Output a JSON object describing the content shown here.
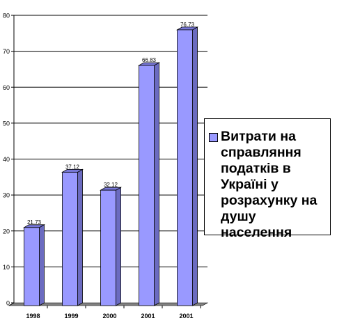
{
  "chart_data": {
    "type": "bar",
    "categories": [
      "1998",
      "1999",
      "2000",
      "2001",
      "2001"
    ],
    "series": [
      {
        "name": "Витрати на справляння податків в Україні у розрахунку на душу населення",
        "values": [
          21.73,
          37.12,
          32.12,
          66.83,
          76.73
        ],
        "value_labels": [
          "21.73",
          "37.12",
          "32.12",
          "66.83",
          "76.73"
        ]
      }
    ],
    "ylim": [
      0,
      80
    ],
    "yticks": [
      0,
      10,
      20,
      30,
      40,
      50,
      60,
      70,
      80
    ],
    "grid": true,
    "legend_position": "right",
    "colors": {
      "bar_front": "#9999ff",
      "bar_side": "#6b6bc0",
      "bar_top": "#7878d8",
      "floor": "#808080",
      "grid": "#000000"
    }
  }
}
